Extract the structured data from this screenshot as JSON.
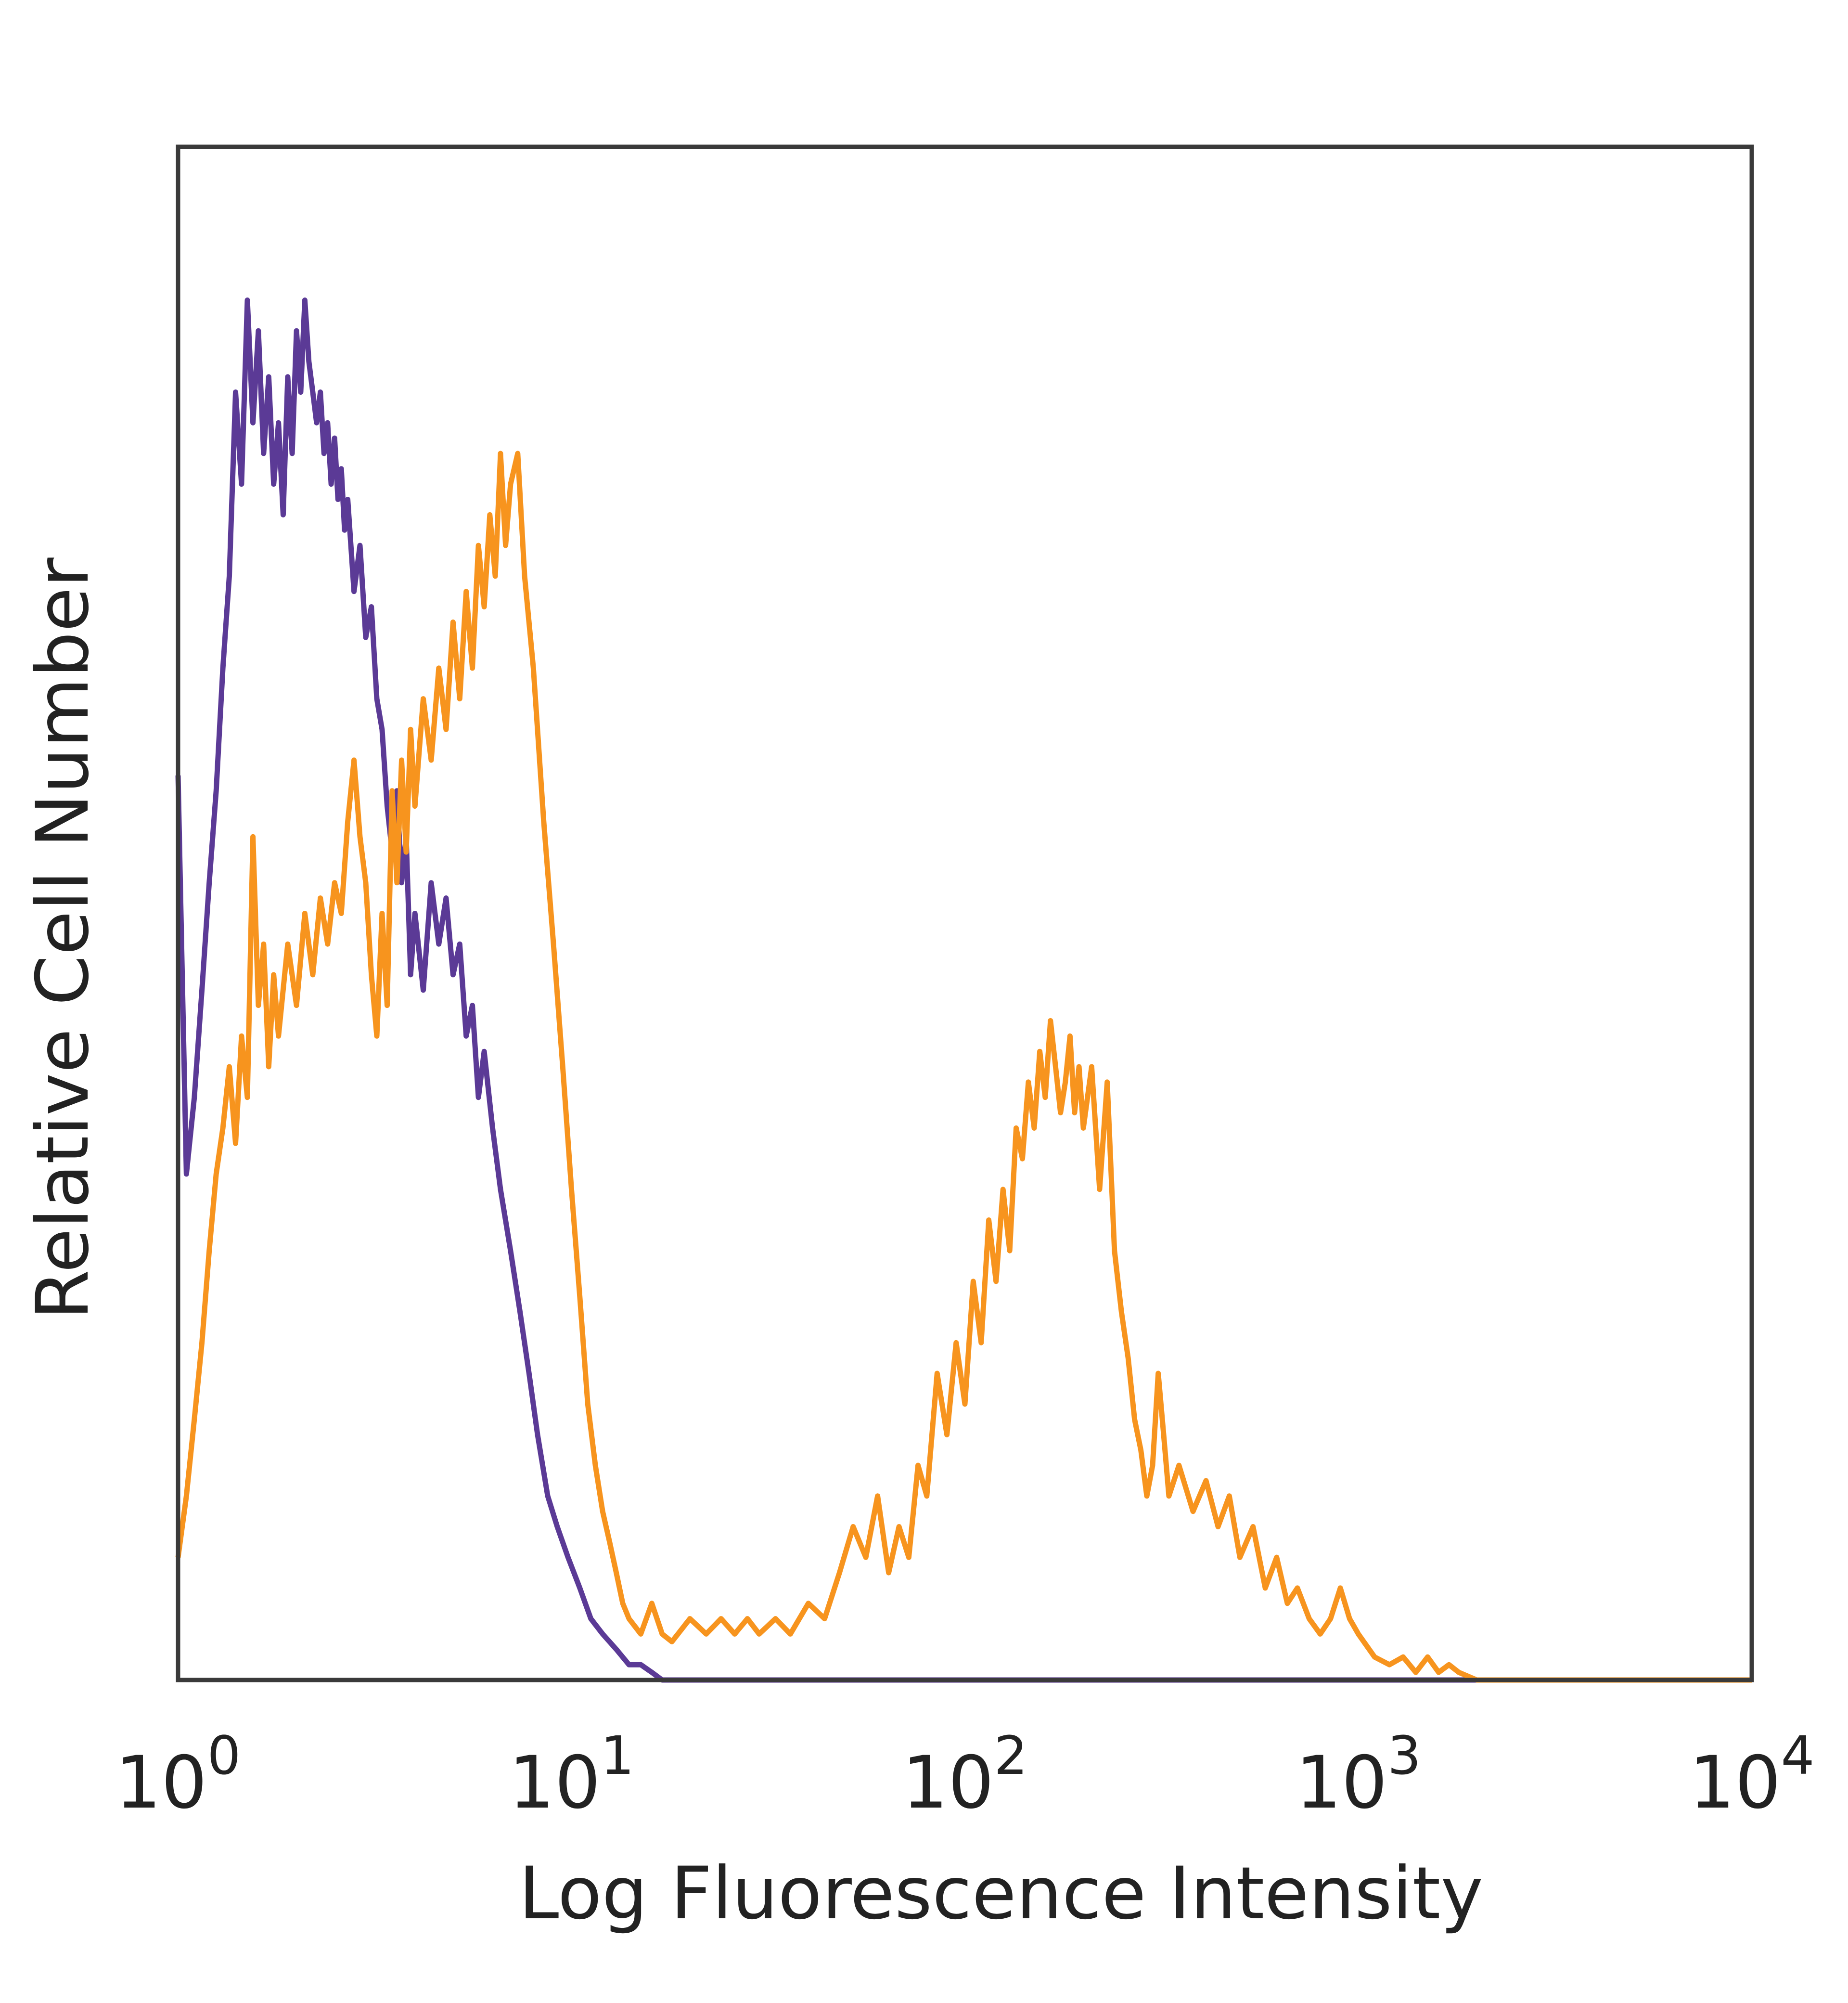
{
  "chart_data": {
    "type": "line",
    "xscale": "log",
    "xlabel": "Log Fluorescence Intensity",
    "ylabel": "Relative Cell Number",
    "xlim": [
      1,
      10000
    ],
    "ylim": [
      0,
      100
    ],
    "xticks": [
      {
        "value": 1,
        "base": "10",
        "exp": "0"
      },
      {
        "value": 10,
        "base": "10",
        "exp": "1"
      },
      {
        "value": 100,
        "base": "10",
        "exp": "2"
      },
      {
        "value": 1000,
        "base": "10",
        "exp": "3"
      },
      {
        "value": 10000,
        "base": "10",
        "exp": "4"
      }
    ],
    "grid": false,
    "legend": "none",
    "series": [
      {
        "color": "#5b3a96",
        "points": [
          [
            1.0,
            59
          ],
          [
            1.05,
            33
          ],
          [
            1.1,
            38
          ],
          [
            1.15,
            45
          ],
          [
            1.2,
            52
          ],
          [
            1.25,
            58
          ],
          [
            1.3,
            66
          ],
          [
            1.35,
            72
          ],
          [
            1.4,
            84
          ],
          [
            1.45,
            78
          ],
          [
            1.5,
            90
          ],
          [
            1.55,
            82
          ],
          [
            1.6,
            88
          ],
          [
            1.65,
            80
          ],
          [
            1.7,
            85
          ],
          [
            1.75,
            78
          ],
          [
            1.8,
            82
          ],
          [
            1.85,
            76
          ],
          [
            1.9,
            85
          ],
          [
            1.95,
            80
          ],
          [
            2.0,
            88
          ],
          [
            2.05,
            84
          ],
          [
            2.1,
            90
          ],
          [
            2.15,
            86
          ],
          [
            2.2,
            84
          ],
          [
            2.25,
            82
          ],
          [
            2.3,
            84
          ],
          [
            2.35,
            80
          ],
          [
            2.4,
            82
          ],
          [
            2.45,
            78
          ],
          [
            2.5,
            81
          ],
          [
            2.55,
            77
          ],
          [
            2.6,
            79
          ],
          [
            2.65,
            75
          ],
          [
            2.7,
            77
          ],
          [
            2.8,
            71
          ],
          [
            2.9,
            74
          ],
          [
            3.0,
            68
          ],
          [
            3.1,
            70
          ],
          [
            3.2,
            64
          ],
          [
            3.3,
            62
          ],
          [
            3.4,
            57
          ],
          [
            3.5,
            54
          ],
          [
            3.6,
            58
          ],
          [
            3.7,
            52
          ],
          [
            3.8,
            55
          ],
          [
            3.9,
            46
          ],
          [
            4.0,
            50
          ],
          [
            4.2,
            45
          ],
          [
            4.4,
            52
          ],
          [
            4.6,
            48
          ],
          [
            4.8,
            51
          ],
          [
            5.0,
            46
          ],
          [
            5.2,
            48
          ],
          [
            5.4,
            42
          ],
          [
            5.6,
            44
          ],
          [
            5.8,
            38
          ],
          [
            6.0,
            41
          ],
          [
            6.3,
            36
          ],
          [
            6.6,
            32
          ],
          [
            7.0,
            28
          ],
          [
            7.4,
            24
          ],
          [
            7.8,
            20
          ],
          [
            8.2,
            16
          ],
          [
            8.7,
            12
          ],
          [
            9.2,
            10
          ],
          [
            9.8,
            8
          ],
          [
            10.5,
            6
          ],
          [
            11.2,
            4
          ],
          [
            12.0,
            3
          ],
          [
            13.0,
            2
          ],
          [
            14.0,
            1
          ],
          [
            15.0,
            1
          ],
          [
            16.0,
            0.5
          ],
          [
            17.0,
            0
          ],
          [
            10000,
            0
          ]
        ]
      },
      {
        "color": "#f7941e",
        "points": [
          [
            1.0,
            8
          ],
          [
            1.05,
            12
          ],
          [
            1.1,
            17
          ],
          [
            1.15,
            22
          ],
          [
            1.2,
            28
          ],
          [
            1.25,
            33
          ],
          [
            1.3,
            36
          ],
          [
            1.35,
            40
          ],
          [
            1.4,
            35
          ],
          [
            1.45,
            42
          ],
          [
            1.5,
            38
          ],
          [
            1.55,
            55
          ],
          [
            1.6,
            44
          ],
          [
            1.65,
            48
          ],
          [
            1.7,
            40
          ],
          [
            1.75,
            46
          ],
          [
            1.8,
            42
          ],
          [
            1.9,
            48
          ],
          [
            2.0,
            44
          ],
          [
            2.1,
            50
          ],
          [
            2.2,
            46
          ],
          [
            2.3,
            51
          ],
          [
            2.4,
            48
          ],
          [
            2.5,
            52
          ],
          [
            2.6,
            50
          ],
          [
            2.7,
            56
          ],
          [
            2.8,
            60
          ],
          [
            2.9,
            55
          ],
          [
            3.0,
            52
          ],
          [
            3.1,
            46
          ],
          [
            3.2,
            42
          ],
          [
            3.3,
            50
          ],
          [
            3.4,
            44
          ],
          [
            3.5,
            58
          ],
          [
            3.6,
            52
          ],
          [
            3.7,
            60
          ],
          [
            3.8,
            54
          ],
          [
            3.9,
            62
          ],
          [
            4.0,
            57
          ],
          [
            4.2,
            64
          ],
          [
            4.4,
            60
          ],
          [
            4.6,
            66
          ],
          [
            4.8,
            62
          ],
          [
            5.0,
            69
          ],
          [
            5.2,
            64
          ],
          [
            5.4,
            71
          ],
          [
            5.6,
            66
          ],
          [
            5.8,
            74
          ],
          [
            6.0,
            70
          ],
          [
            6.2,
            76
          ],
          [
            6.4,
            72
          ],
          [
            6.6,
            80
          ],
          [
            6.8,
            74
          ],
          [
            7.0,
            78
          ],
          [
            7.3,
            80
          ],
          [
            7.6,
            72
          ],
          [
            8.0,
            66
          ],
          [
            8.5,
            56
          ],
          [
            9.0,
            48
          ],
          [
            9.5,
            40
          ],
          [
            10.0,
            32
          ],
          [
            10.5,
            25
          ],
          [
            11.0,
            18
          ],
          [
            11.5,
            14
          ],
          [
            12.0,
            11
          ],
          [
            12.5,
            9
          ],
          [
            13.0,
            7
          ],
          [
            13.5,
            5
          ],
          [
            14.0,
            4
          ],
          [
            15.0,
            3
          ],
          [
            16.0,
            5
          ],
          [
            17.0,
            3
          ],
          [
            18,
            2.5
          ],
          [
            20,
            4
          ],
          [
            22,
            3
          ],
          [
            24,
            4
          ],
          [
            26,
            3
          ],
          [
            28,
            4
          ],
          [
            30,
            3
          ],
          [
            33,
            4
          ],
          [
            36,
            3
          ],
          [
            40,
            5
          ],
          [
            44,
            4
          ],
          [
            48,
            7
          ],
          [
            52,
            10
          ],
          [
            56,
            8
          ],
          [
            60,
            12
          ],
          [
            64,
            7
          ],
          [
            68,
            10
          ],
          [
            72,
            8
          ],
          [
            76,
            14
          ],
          [
            80,
            12
          ],
          [
            85,
            20
          ],
          [
            90,
            16
          ],
          [
            95,
            22
          ],
          [
            100,
            18
          ],
          [
            105,
            26
          ],
          [
            110,
            22
          ],
          [
            115,
            30
          ],
          [
            120,
            26
          ],
          [
            125,
            32
          ],
          [
            130,
            28
          ],
          [
            135,
            36
          ],
          [
            140,
            34
          ],
          [
            145,
            39
          ],
          [
            150,
            36
          ],
          [
            155,
            41
          ],
          [
            160,
            38
          ],
          [
            165,
            43
          ],
          [
            170,
            40
          ],
          [
            175,
            37
          ],
          [
            180,
            39
          ],
          [
            185,
            42
          ],
          [
            190,
            37
          ],
          [
            195,
            40
          ],
          [
            200,
            36
          ],
          [
            210,
            40
          ],
          [
            220,
            32
          ],
          [
            230,
            39
          ],
          [
            240,
            28
          ],
          [
            250,
            24
          ],
          [
            260,
            21
          ],
          [
            270,
            17
          ],
          [
            280,
            15
          ],
          [
            290,
            12
          ],
          [
            300,
            14
          ],
          [
            310,
            20
          ],
          [
            320,
            16
          ],
          [
            330,
            12
          ],
          [
            350,
            14
          ],
          [
            380,
            11
          ],
          [
            410,
            13
          ],
          [
            440,
            10
          ],
          [
            470,
            12
          ],
          [
            500,
            8
          ],
          [
            540,
            10
          ],
          [
            580,
            6
          ],
          [
            620,
            8
          ],
          [
            660,
            5
          ],
          [
            700,
            6
          ],
          [
            750,
            4
          ],
          [
            800,
            3
          ],
          [
            850,
            4
          ],
          [
            900,
            6
          ],
          [
            950,
            4
          ],
          [
            1000,
            3
          ],
          [
            1100,
            1.5
          ],
          [
            1200,
            1
          ],
          [
            1300,
            1.5
          ],
          [
            1400,
            0.5
          ],
          [
            1500,
            1.5
          ],
          [
            1600,
            0.5
          ],
          [
            1700,
            1
          ],
          [
            1800,
            0.5
          ],
          [
            2000,
            0
          ],
          [
            10000,
            0
          ]
        ]
      }
    ]
  }
}
